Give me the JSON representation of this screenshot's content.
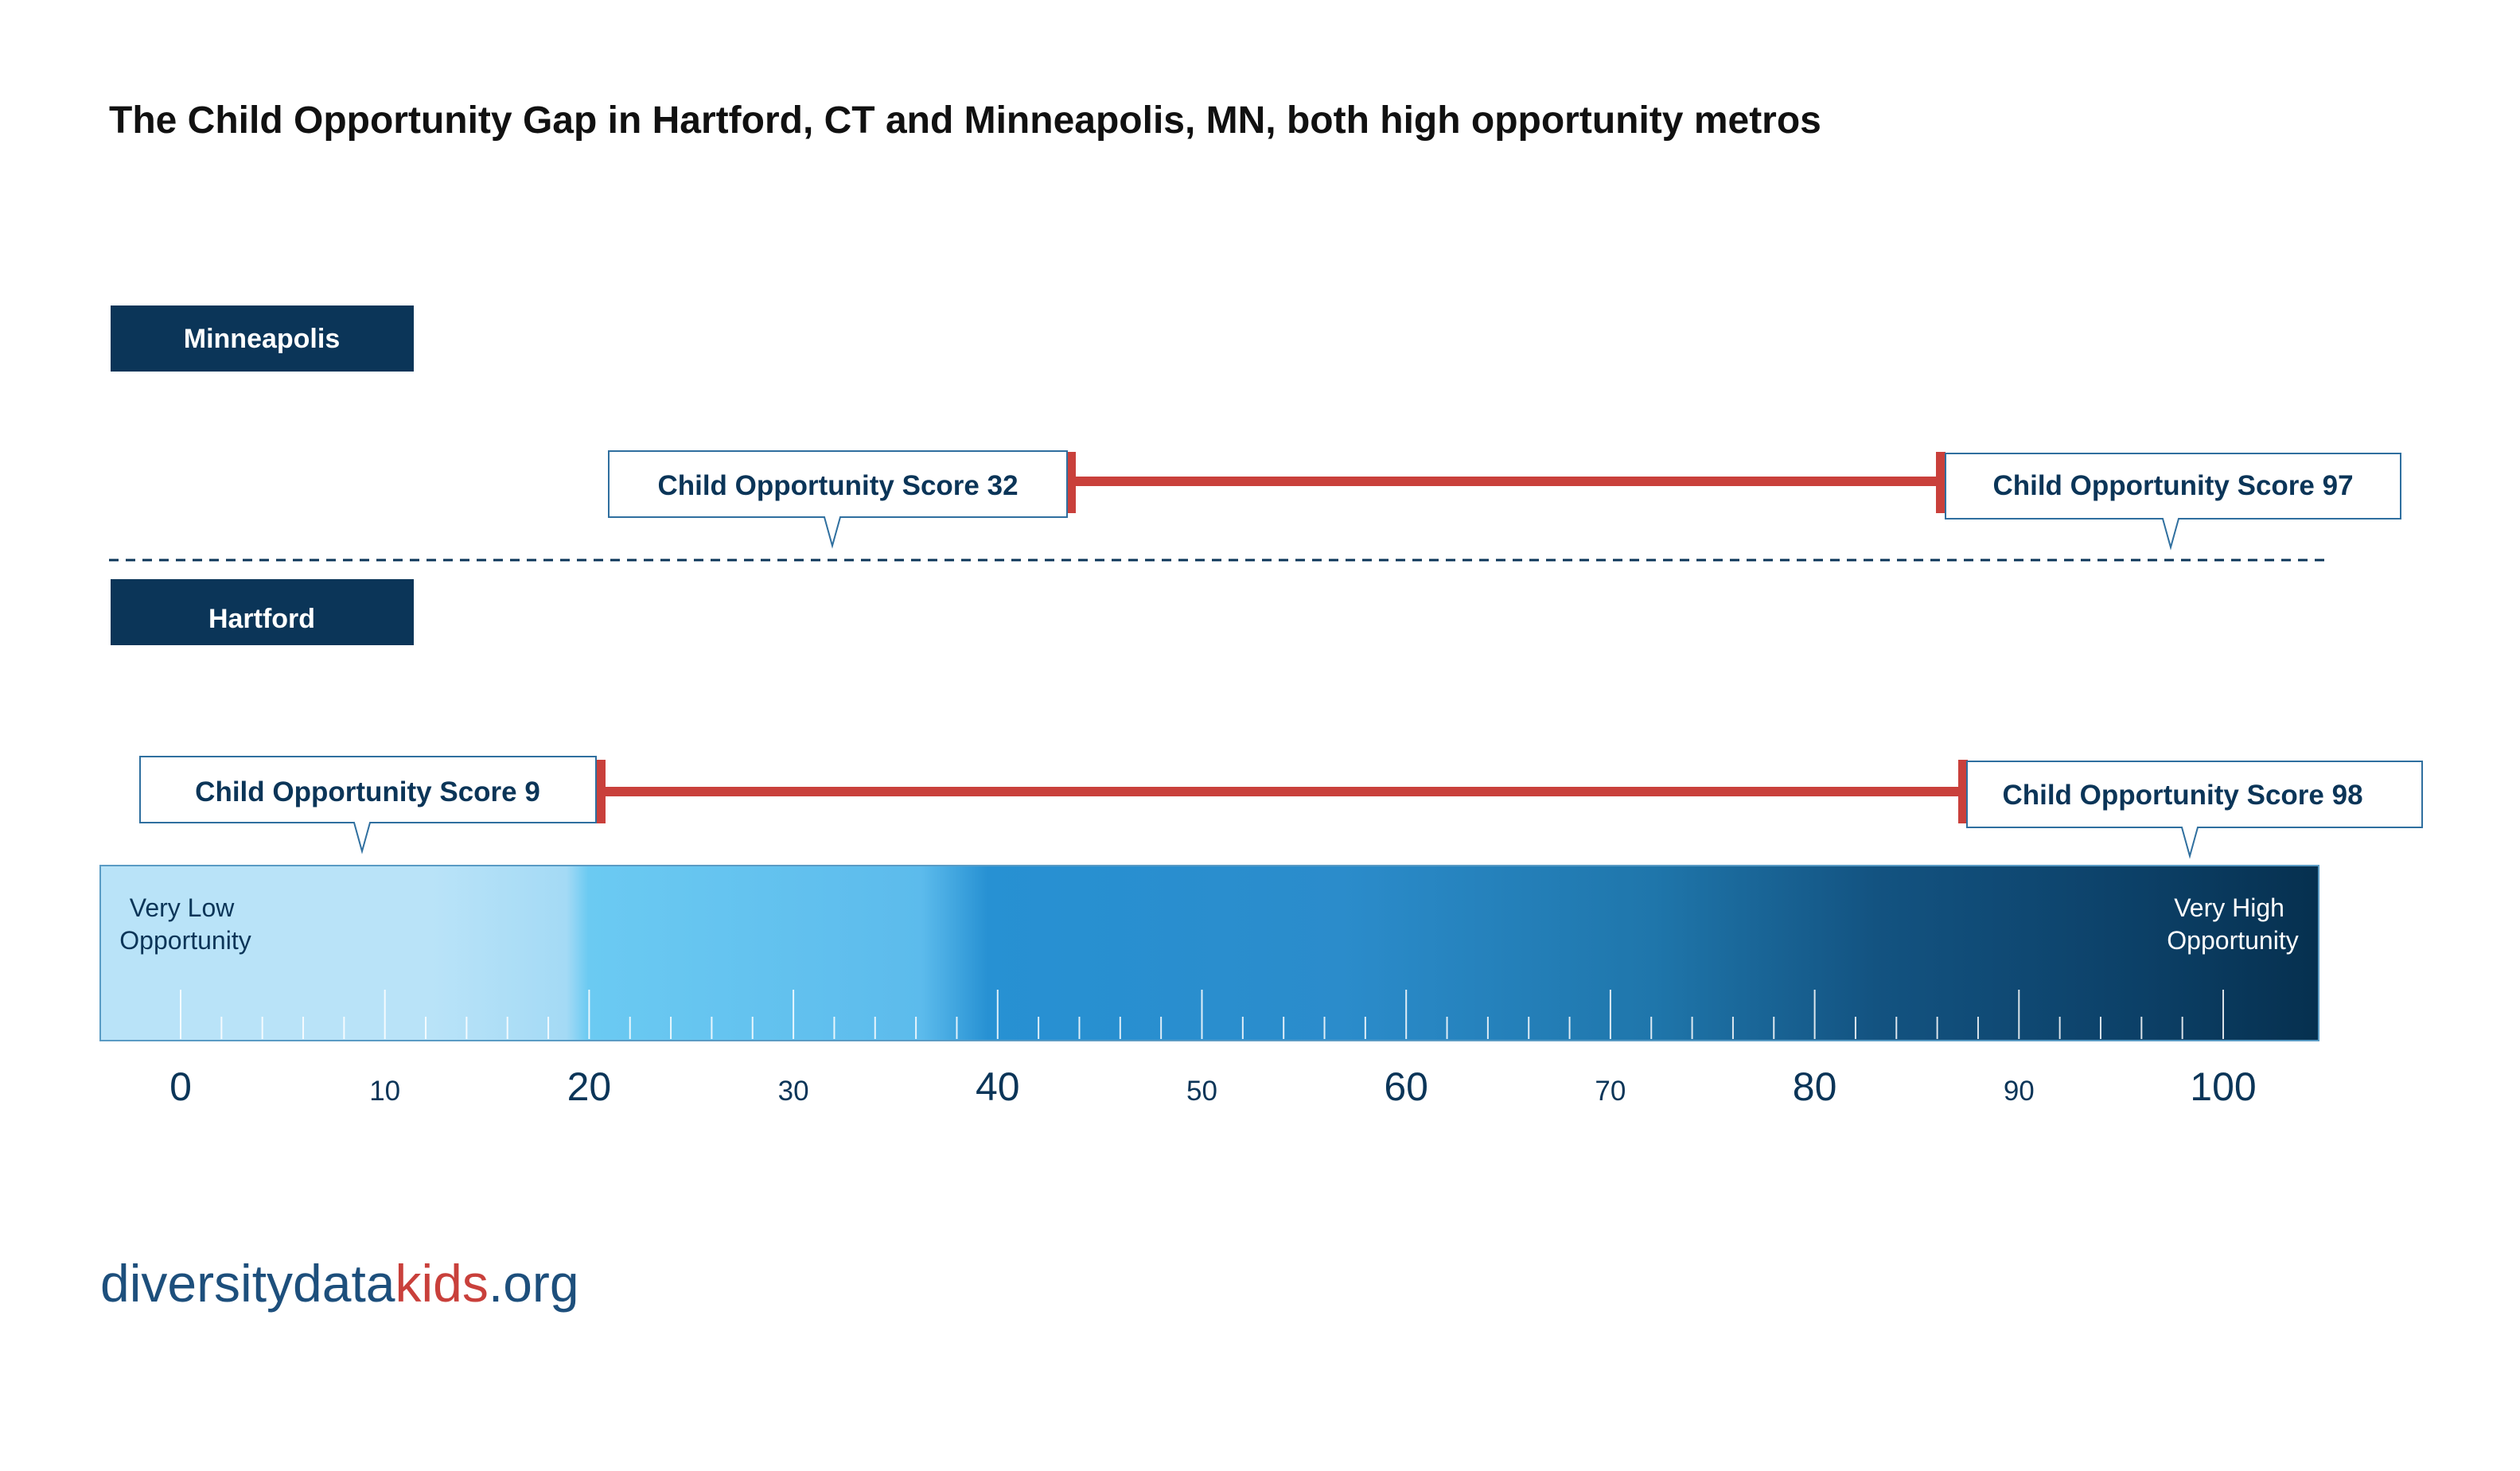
{
  "chart_data": {
    "type": "range",
    "title": "The Child Opportunity Gap in Hartford, CT and Minneapolis, MN, both high opportunity metros",
    "xlim": [
      0,
      100
    ],
    "tick_step": 2,
    "major_ticks": [
      0,
      20,
      40,
      60,
      80,
      100
    ],
    "minor_labeled_ticks": [
      10,
      30,
      50,
      70,
      90
    ],
    "scale_labels": {
      "low": "Very Low Opportunity",
      "high": "Very High Opportunity"
    },
    "series": [
      {
        "name": "Minneapolis",
        "low": 32,
        "high": 97,
        "low_label": "Child Opportunity Score 32",
        "high_label": "Child Opportunity Score 97"
      },
      {
        "name": "Hartford",
        "low": 9,
        "high": 98,
        "low_label": "Child Opportunity Score 9",
        "high_label": "Child Opportunity Score 98"
      }
    ],
    "colors": {
      "navy": "#0b3558",
      "range_line": "#c9403b",
      "callout_border": "#2f6f9f",
      "divider": "#0b3558"
    }
  },
  "branding": {
    "logo": {
      "part1": "diversitydata",
      "part2": "kids",
      "part3": ".org",
      "color_main": "#1d4f7c",
      "color_accent": "#c9403b"
    }
  }
}
